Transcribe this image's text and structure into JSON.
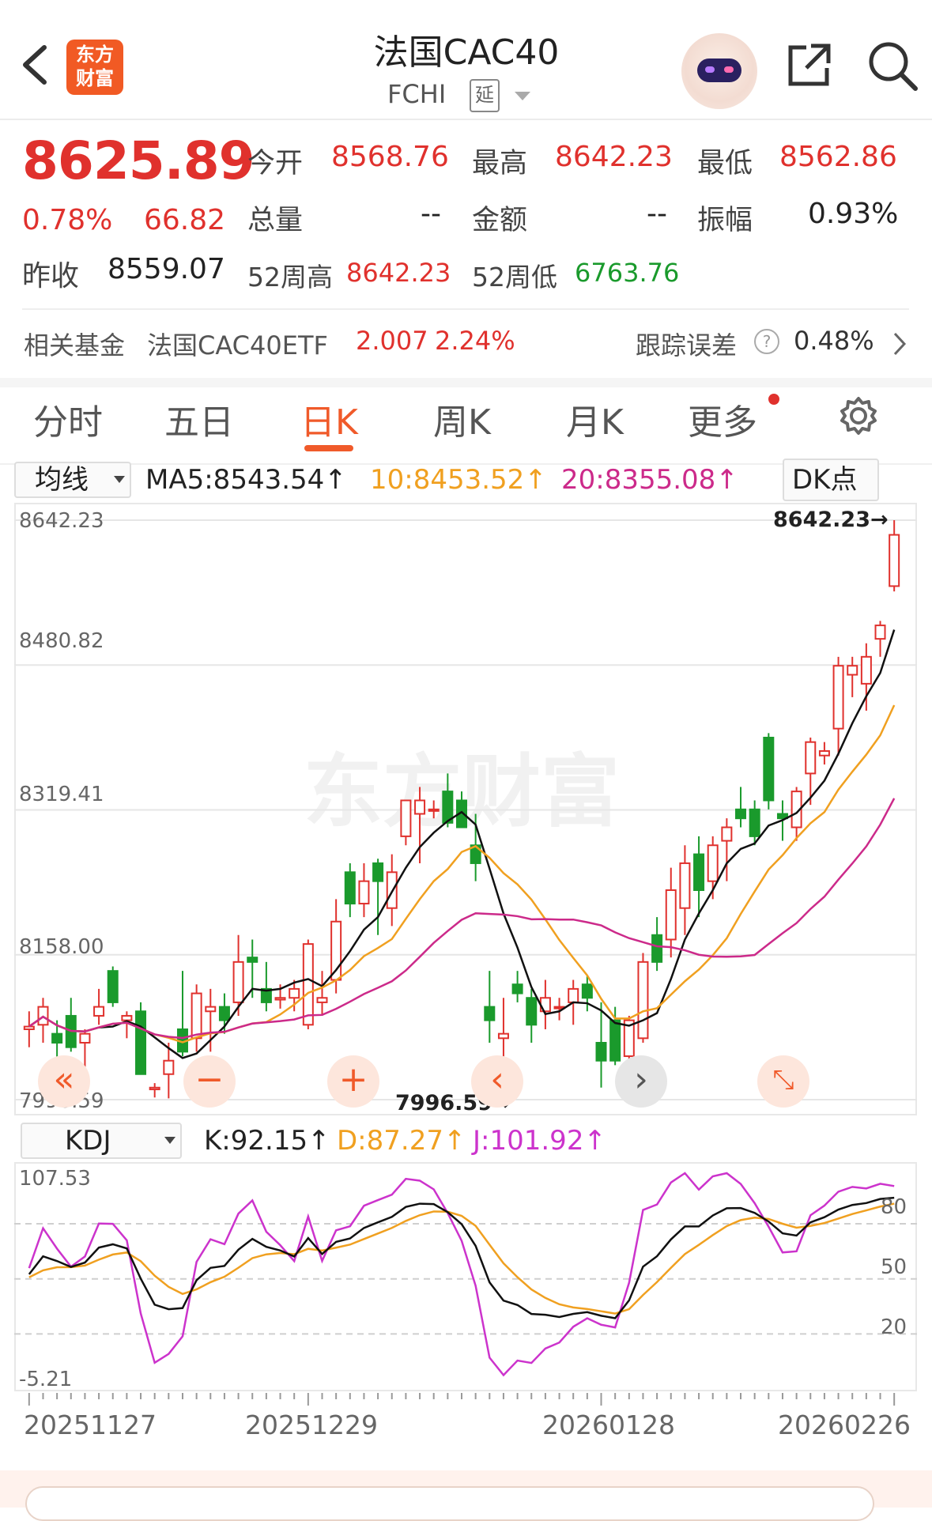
{
  "header": {
    "logo_line1": "东方",
    "logo_line2": "财富",
    "title": "法国CAC40",
    "code": "FCHI",
    "delay_badge": "延"
  },
  "quote": {
    "price": "8625.89",
    "change_pct": "0.78%",
    "change": "66.82",
    "open_label": "今开",
    "open": "8568.76",
    "high_label": "最高",
    "high": "8642.23",
    "low_label": "最低",
    "low": "8562.86",
    "volume_label": "总量",
    "volume": "--",
    "amount_label": "金额",
    "amount": "--",
    "amplitude_label": "振幅",
    "amplitude": "0.93%",
    "prev_close_label": "昨收",
    "prev_close": "8559.07",
    "w52_high_label": "52周高",
    "w52_high": "8642.23",
    "w52_low_label": "52周低",
    "w52_low": "6763.76"
  },
  "fund": {
    "label": "相关基金",
    "name": "法国CAC40ETF",
    "price": "2.007",
    "pct": "2.24%",
    "tracking_label": "跟踪误差",
    "tracking_help": "?",
    "tracking_value": "0.48%"
  },
  "tabs": [
    "分时",
    "五日",
    "日K",
    "周K",
    "月K",
    "更多"
  ],
  "active_tab": "日K",
  "kline": {
    "indicator_select": "均线",
    "ma5": "MA5:8543.54↑",
    "ma10": "10:8453.52↑",
    "ma20": "20:8355.08↑",
    "dk_button": "DK点",
    "y_labels": [
      "8642.23",
      "8480.82",
      "8319.41",
      "8158.00",
      "7996.59"
    ],
    "max_marker": "8642.23→",
    "min_marker": "7996.59→",
    "watermark": "东方财富"
  },
  "kdj": {
    "indicator_select": "KDJ",
    "k": "K:92.15↑",
    "d": "D:87.27↑",
    "j": "J:101.92↑",
    "top_label": "107.53",
    "bottom_label": "-5.21",
    "right_labels": [
      "80",
      "50",
      "20"
    ]
  },
  "dates": [
    "20251127",
    "20251229",
    "20260128",
    "20260226"
  ],
  "colors": {
    "up": "#e0312d",
    "down": "#1a9a2c",
    "ma5": "#111111",
    "ma10": "#f0a020",
    "ma20": "#cc2a8a",
    "kdj_k": "#111111",
    "kdj_d": "#f0a020",
    "kdj_j": "#cc33cc"
  },
  "chart_data": {
    "type": "candlestick",
    "ylim": [
      7996.59,
      8642.23
    ],
    "candles": [
      {
        "o": 8075,
        "h": 8095,
        "l": 8055,
        "c": 8078
      },
      {
        "o": 8080,
        "h": 8110,
        "l": 8060,
        "c": 8100
      },
      {
        "o": 8070,
        "h": 8085,
        "l": 8000,
        "c": 8060
      },
      {
        "o": 8090,
        "h": 8110,
        "l": 8050,
        "c": 8055
      },
      {
        "o": 8060,
        "h": 8075,
        "l": 8020,
        "c": 8070
      },
      {
        "o": 8090,
        "h": 8120,
        "l": 8080,
        "c": 8100
      },
      {
        "o": 8140,
        "h": 8145,
        "l": 8100,
        "c": 8105
      },
      {
        "o": 8085,
        "h": 8095,
        "l": 8065,
        "c": 8090
      },
      {
        "o": 8095,
        "h": 8105,
        "l": 8025,
        "c": 8025
      },
      {
        "o": 8008,
        "h": 8015,
        "l": 7999,
        "c": 8010
      },
      {
        "o": 8025,
        "h": 8060,
        "l": 7998,
        "c": 8040
      },
      {
        "o": 8075,
        "h": 8140,
        "l": 8045,
        "c": 8050
      },
      {
        "o": 8065,
        "h": 8125,
        "l": 8050,
        "c": 8115
      },
      {
        "o": 8095,
        "h": 8120,
        "l": 8050,
        "c": 8100
      },
      {
        "o": 8100,
        "h": 8115,
        "l": 8070,
        "c": 8085
      },
      {
        "o": 8105,
        "h": 8180,
        "l": 8090,
        "c": 8150
      },
      {
        "o": 8155,
        "h": 8175,
        "l": 8110,
        "c": 8150
      },
      {
        "o": 8120,
        "h": 8150,
        "l": 8095,
        "c": 8105
      },
      {
        "o": 8108,
        "h": 8125,
        "l": 8098,
        "c": 8110
      },
      {
        "o": 8110,
        "h": 8130,
        "l": 8095,
        "c": 8120
      },
      {
        "o": 8080,
        "h": 8175,
        "l": 8075,
        "c": 8170
      },
      {
        "o": 8105,
        "h": 8140,
        "l": 8090,
        "c": 8110
      },
      {
        "o": 8130,
        "h": 8220,
        "l": 8115,
        "c": 8195
      },
      {
        "o": 8250,
        "h": 8260,
        "l": 8200,
        "c": 8215
      },
      {
        "o": 8215,
        "h": 8260,
        "l": 8200,
        "c": 8240
      },
      {
        "o": 8260,
        "h": 8265,
        "l": 8180,
        "c": 8240
      },
      {
        "o": 8210,
        "h": 8270,
        "l": 8190,
        "c": 8250
      },
      {
        "o": 8290,
        "h": 8330,
        "l": 8280,
        "c": 8330
      },
      {
        "o": 8315,
        "h": 8345,
        "l": 8260,
        "c": 8330
      },
      {
        "o": 8320,
        "h": 8330,
        "l": 8310,
        "c": 8320
      },
      {
        "o": 8340,
        "h": 8360,
        "l": 8300,
        "c": 8305
      },
      {
        "o": 8330,
        "h": 8340,
        "l": 8300,
        "c": 8300
      },
      {
        "o": 8280,
        "h": 8315,
        "l": 8240,
        "c": 8260
      },
      {
        "o": 8100,
        "h": 8140,
        "l": 8060,
        "c": 8085
      },
      {
        "o": 8065,
        "h": 8110,
        "l": 8005,
        "c": 8070
      },
      {
        "o": 8125,
        "h": 8140,
        "l": 8105,
        "c": 8115
      },
      {
        "o": 8110,
        "h": 8120,
        "l": 8060,
        "c": 8080
      },
      {
        "o": 8095,
        "h": 8130,
        "l": 8075,
        "c": 8110
      },
      {
        "o": 8100,
        "h": 8110,
        "l": 8085,
        "c": 8100
      },
      {
        "o": 8105,
        "h": 8130,
        "l": 8080,
        "c": 8120
      },
      {
        "o": 8125,
        "h": 8135,
        "l": 8095,
        "c": 8110
      },
      {
        "o": 8060,
        "h": 8105,
        "l": 8010,
        "c": 8040
      },
      {
        "o": 8085,
        "h": 8100,
        "l": 8035,
        "c": 8040
      },
      {
        "o": 8045,
        "h": 8090,
        "l": 8035,
        "c": 8085
      },
      {
        "o": 8065,
        "h": 8160,
        "l": 8060,
        "c": 8150
      },
      {
        "o": 8180,
        "h": 8200,
        "l": 8140,
        "c": 8150
      },
      {
        "o": 8175,
        "h": 8255,
        "l": 8155,
        "c": 8230
      },
      {
        "o": 8210,
        "h": 8280,
        "l": 8180,
        "c": 8260
      },
      {
        "o": 8270,
        "h": 8290,
        "l": 8200,
        "c": 8230
      },
      {
        "o": 8240,
        "h": 8290,
        "l": 8220,
        "c": 8280
      },
      {
        "o": 8285,
        "h": 8310,
        "l": 8240,
        "c": 8300
      },
      {
        "o": 8320,
        "h": 8345,
        "l": 8300,
        "c": 8310
      },
      {
        "o": 8320,
        "h": 8330,
        "l": 8280,
        "c": 8290
      },
      {
        "o": 8400,
        "h": 8405,
        "l": 8320,
        "c": 8330
      },
      {
        "o": 8315,
        "h": 8330,
        "l": 8285,
        "c": 8310
      },
      {
        "o": 8300,
        "h": 8345,
        "l": 8285,
        "c": 8340
      },
      {
        "o": 8360,
        "h": 8400,
        "l": 8325,
        "c": 8395
      },
      {
        "o": 8380,
        "h": 8395,
        "l": 8370,
        "c": 8385
      },
      {
        "o": 8410,
        "h": 8490,
        "l": 8380,
        "c": 8480
      },
      {
        "o": 8470,
        "h": 8490,
        "l": 8445,
        "c": 8480
      },
      {
        "o": 8460,
        "h": 8505,
        "l": 8430,
        "c": 8490
      },
      {
        "o": 8510,
        "h": 8530,
        "l": 8490,
        "c": 8525
      },
      {
        "o": 8568.76,
        "h": 8642.23,
        "l": 8562.86,
        "c": 8625.89
      }
    ],
    "kdj_ylim": [
      -5.21,
      107.53
    ]
  }
}
